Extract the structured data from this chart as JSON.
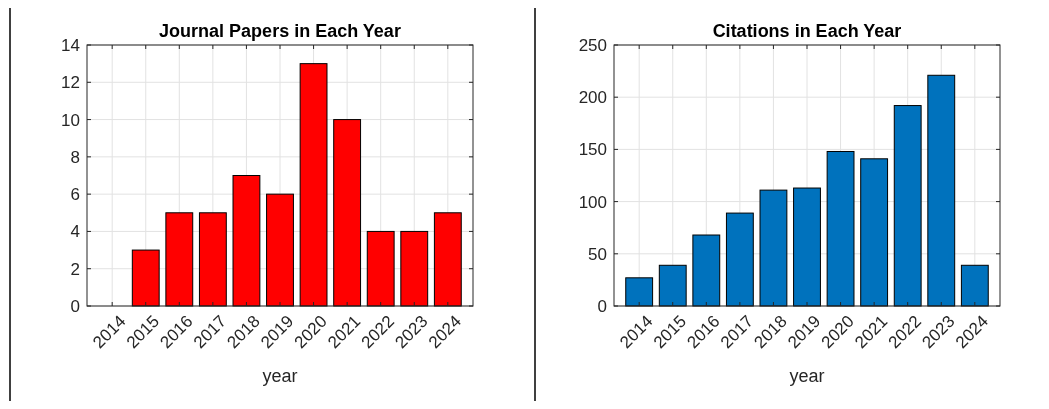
{
  "chart_data": [
    {
      "type": "bar",
      "title": "Journal Papers in Each Year",
      "xlabel": "year",
      "categories": [
        "2014",
        "2015",
        "2016",
        "2017",
        "2018",
        "2019",
        "2020",
        "2021",
        "2022",
        "2023",
        "2024"
      ],
      "values": [
        0,
        3,
        5,
        5,
        7,
        6,
        13,
        10,
        4,
        4,
        5
      ],
      "color": "#ff0000",
      "ylim": [
        0,
        14
      ],
      "yticks": [
        0,
        2,
        4,
        6,
        8,
        10,
        12,
        14
      ],
      "grid": true
    },
    {
      "type": "bar",
      "title": "Citations in Each Year",
      "xlabel": "year",
      "categories": [
        "2014",
        "2015",
        "2016",
        "2017",
        "2018",
        "2019",
        "2020",
        "2021",
        "2022",
        "2023",
        "2024"
      ],
      "values": [
        27,
        39,
        68,
        89,
        111,
        113,
        148,
        141,
        192,
        221,
        39
      ],
      "color": "#0072bd",
      "ylim": [
        0,
        250
      ],
      "yticks": [
        0,
        50,
        100,
        150,
        200,
        250
      ],
      "grid": true
    }
  ]
}
